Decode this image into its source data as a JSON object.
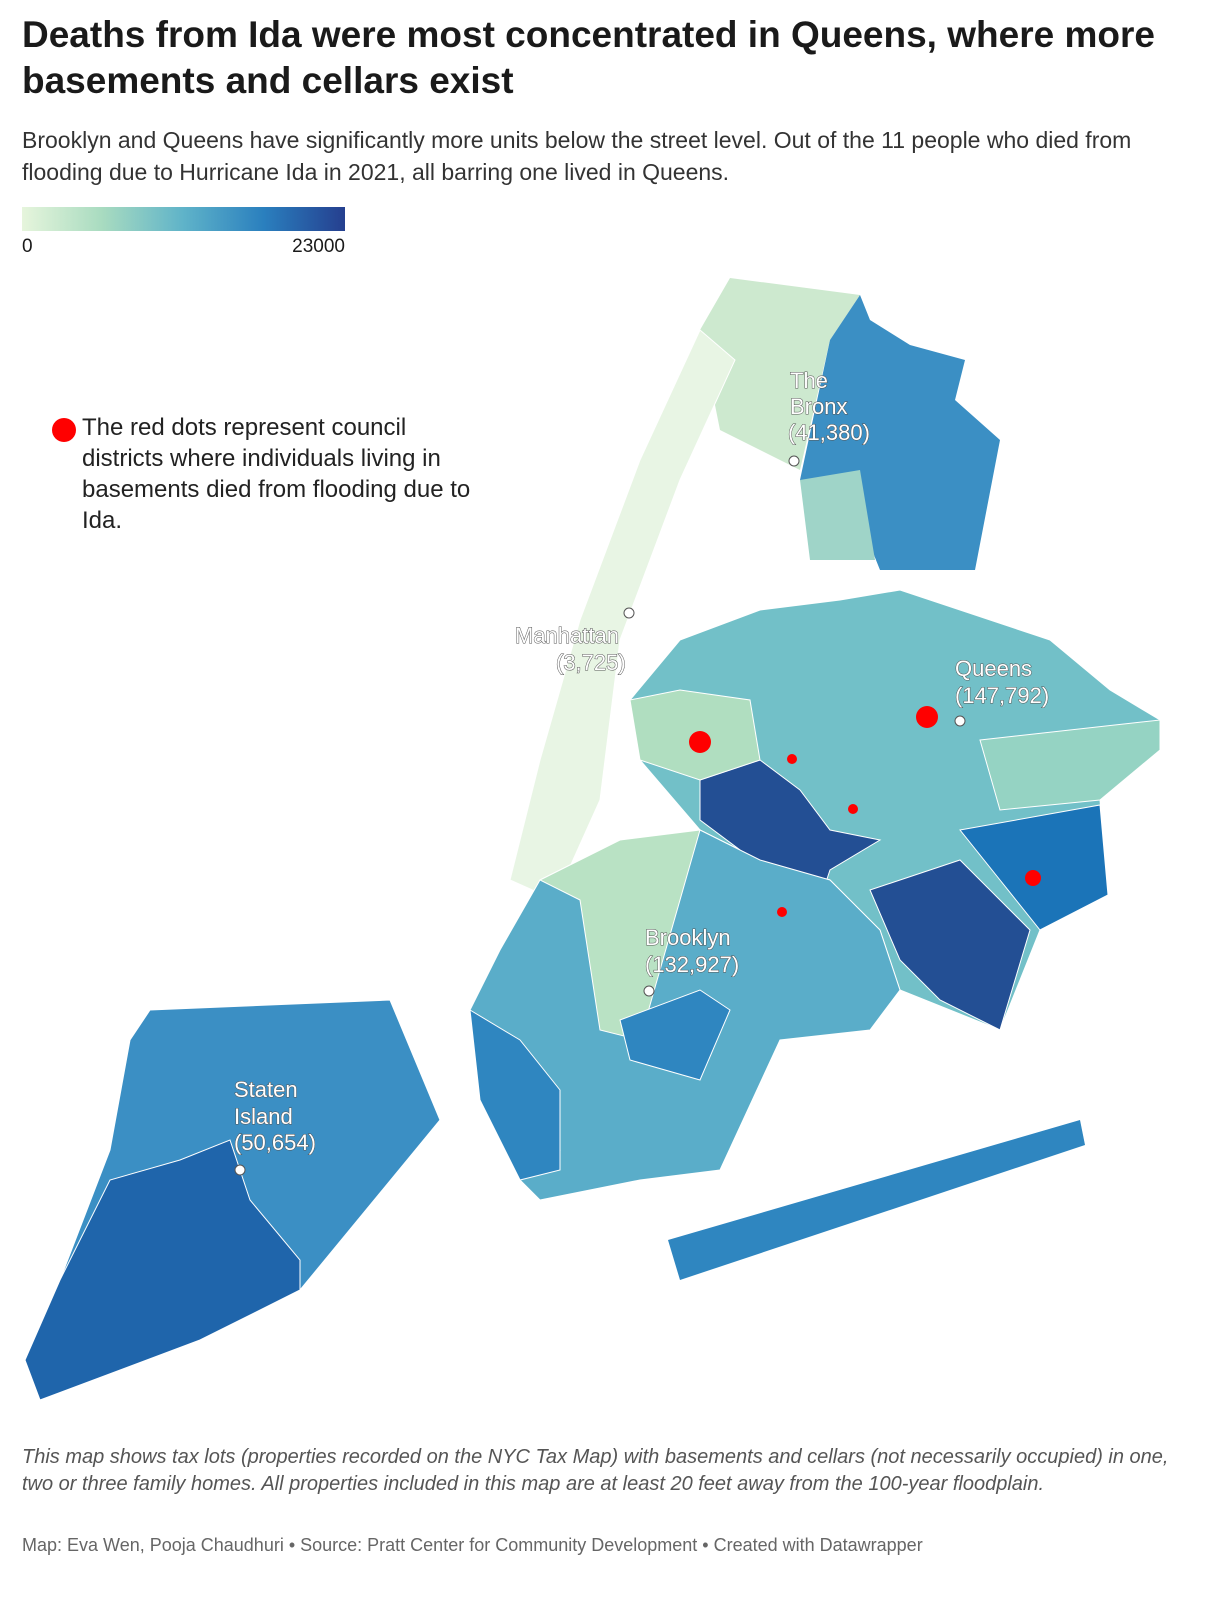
{
  "header": {
    "title": "Deaths from Ida were most concentrated in Queens, where more basements and cellars exist",
    "subtitle": "Brooklyn and Queens have significantly more units below the street level. Out of the 11 people who died from flooding due to Hurricane Ida in 2021, all barring one lived in Queens."
  },
  "legend": {
    "min": 0,
    "max": 23000
  },
  "annotation": "The red dots represent council districts where individuals living in basements died from flooding due to Ida.",
  "boroughs": [
    {
      "name": "The Bronx",
      "count": "(41,380)"
    },
    {
      "name": "Manhattan",
      "count": "(3,725)"
    },
    {
      "name": "Queens",
      "count": "(147,792)"
    },
    {
      "name": "Brooklyn",
      "count": "(132,927)"
    },
    {
      "name": "Staten Island",
      "count": "(50,654)"
    }
  ],
  "footer": {
    "note": "This map shows tax lots (properties recorded on the NYC Tax Map) with basements and cellars (not necessarily occupied) in one, two or three family homes. All properties included in this map are at least 20 feet away from the 100-year floodplain.",
    "credit": "Map: Eva Wen, Pooja Chaudhuri • Source: Pratt Center for Community Development • Created with Datawrapper"
  }
}
